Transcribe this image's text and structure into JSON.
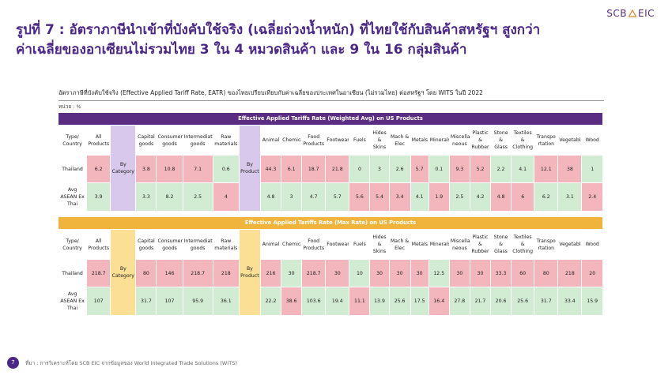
{
  "logo": {
    "text_left": "SCB",
    "text_right": "EIC"
  },
  "title": {
    "line1": "รูปที่ 7 : อัตราภาษีนำเข้าที่บังคับใช้จริง (เฉลี่ยถ่วงน้ำหนัก) ที่ไทยใช้กับสินค้าสหรัฐฯ สูงกว่า",
    "line2": "ค่าเฉลี่ยของอาเซียนไม่รวมไทย 3 ใน 4 หมวดสินค้า และ 9 ใน 16 กลุ่มสินค้า"
  },
  "subtitle": "อัตราภาษีที่บังคับใช้จริง (Effective Applied Tariff Rate, EATR) ของไทยเปรียบเทียบกับค่าเฉลี่ยของประเทศในอาเซียน (ไม่รวมไทย) ต่อสหรัฐฯ โดย WITS ในปี 2022",
  "unit": "หน่วย : %",
  "labels": {
    "type_country": "Type/ Country",
    "all_products": "All Products",
    "by_category": "By Category",
    "by_product": "By Product",
    "thailand": "Thailand",
    "asean": "Avg ASEAN Ex Thai"
  },
  "categories": [
    "Capital goods",
    "Consumer goods",
    "Intermediate goods",
    "Raw materials"
  ],
  "products": [
    "Animal",
    "Chemicals",
    "Food Products",
    "Footwear",
    "Fuels",
    "Hides & Skins",
    "Mach & Elec",
    "Metals",
    "Minerals",
    "Miscella neous",
    "Plastic & Rubber",
    "Stone & Glass",
    "Textiles & Clothing",
    "Transpo rtation",
    "Vegetable",
    "Wood"
  ],
  "tables": [
    {
      "header": "Effective Applied Tariffs Rate (Weighted Avg) on US Products",
      "thailand": {
        "all": "6.2",
        "cat": [
          "3.8",
          "10.8",
          "7.1",
          "0.6"
        ],
        "prod": [
          "44.3",
          "6.1",
          "18.7",
          "21.8",
          "0",
          "3",
          "2.6",
          "5.7",
          "0.1",
          "9.3",
          "5.2",
          "2.2",
          "4.1",
          "12.1",
          "38",
          "1"
        ]
      },
      "asean": {
        "all": "3.9",
        "cat": [
          "3.3",
          "8.2",
          "2.5",
          "4"
        ],
        "prod": [
          "4.8",
          "3",
          "4.7",
          "5.7",
          "5.6",
          "5.4",
          "3.4",
          "4.1",
          "1.9",
          "2.5",
          "4.2",
          "4.8",
          "6",
          "6.2",
          "3.1",
          "2.4"
        ]
      }
    },
    {
      "header": "Effective Applied Tariffs Rate (Max Rate) on US Products",
      "thailand": {
        "all": "218.7",
        "cat": [
          "80",
          "146",
          "218.7",
          "218"
        ],
        "prod": [
          "216",
          "30",
          "218.7",
          "30",
          "10",
          "30",
          "30",
          "30",
          "12.5",
          "30",
          "30",
          "33.3",
          "60",
          "80",
          "218",
          "20"
        ]
      },
      "asean": {
        "all": "107",
        "cat": [
          "31.7",
          "107",
          "95.9",
          "36.1"
        ],
        "prod": [
          "22.2",
          "38.6",
          "103.6",
          "19.4",
          "11.1",
          "13.9",
          "25.6",
          "17.5",
          "16.4",
          "27.8",
          "21.7",
          "20.6",
          "25.6",
          "31.7",
          "33.4",
          "15.9"
        ]
      }
    }
  ],
  "colors": {
    "higher": "#f4b6bd",
    "lower": "#d2ebd3",
    "purple": "#5a2d82",
    "gold": "#f0b43c"
  },
  "footer": {
    "page": "7",
    "source": "ที่มา : การวิเคราะห์โดย SCB EIC จากข้อมูลของ World Integrated Trade Solutions (WITS)"
  }
}
